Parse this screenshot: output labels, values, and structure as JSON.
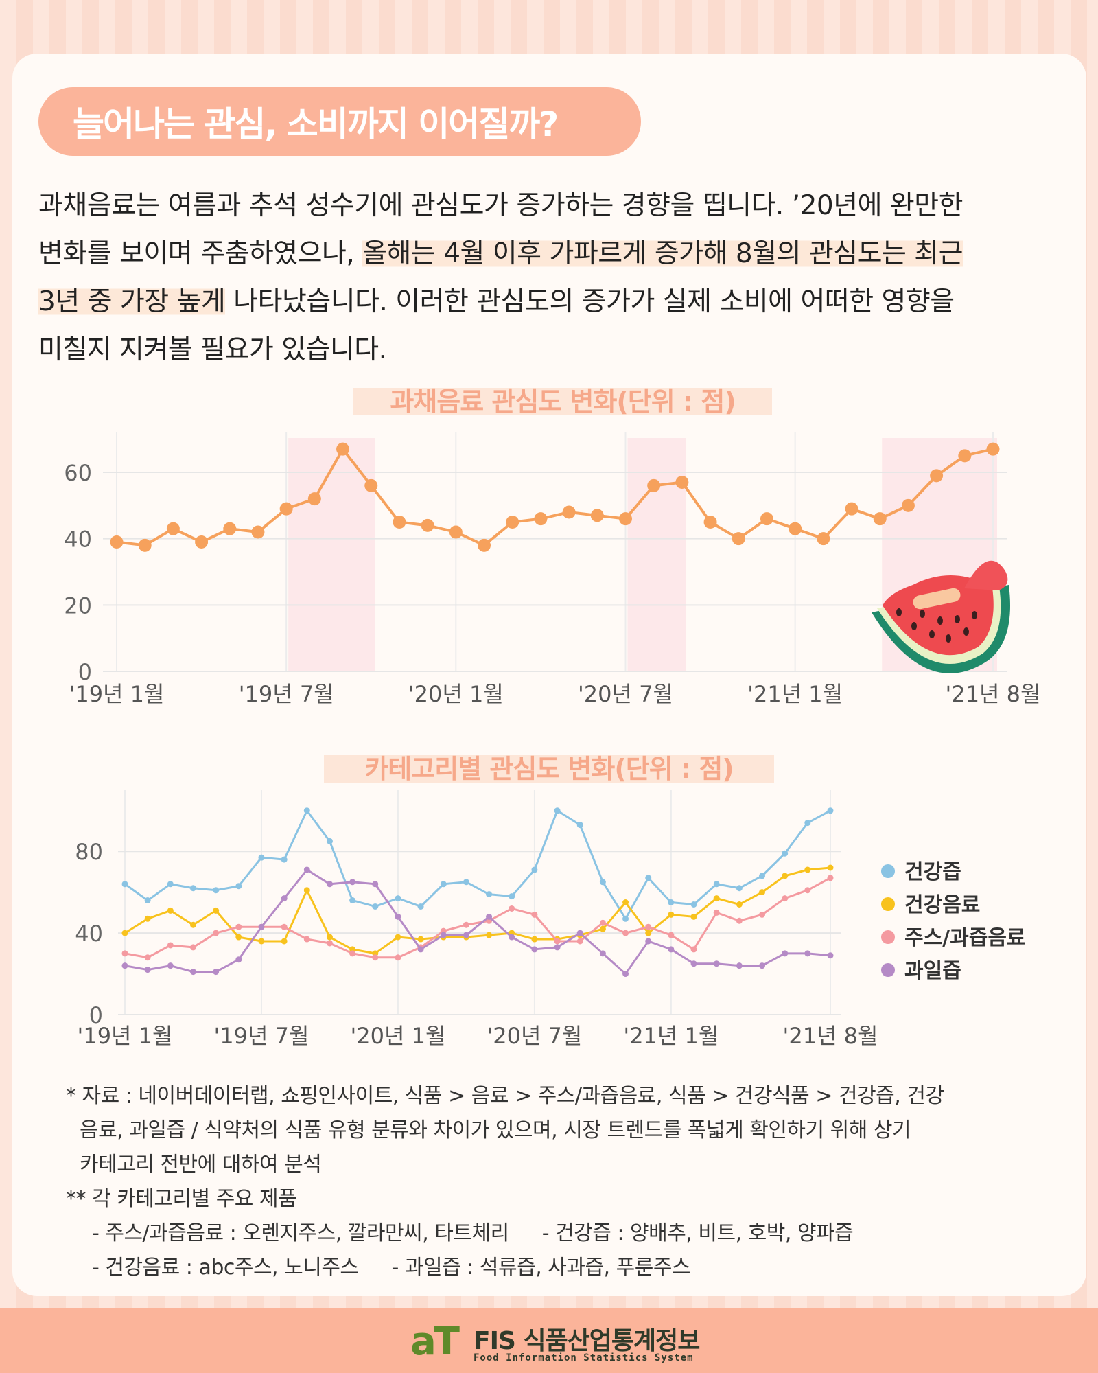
{
  "header": {
    "title": "늘어나는 관심, 소비까지 이어질까?"
  },
  "intro": {
    "line1": "과채음료는 여름과 추석 성수기에 관심도가 증가하는 경향을 띱니다. ’20년에 완만한",
    "line2a": "변화를 보이며 주춤하였으나, ",
    "line2b": "올해는 4월 이후 가파르게 증가해 8월의 관심도는 최근",
    "line3a": "3년 중 가장 높게",
    "line3b": " 나타났습니다. 이러한 관심도의 증가가 실제 소비에 어떠한 영향을",
    "line4": "미칠지 지켜볼 필요가 있습니다."
  },
  "colors": {
    "accent": "#fbb49a",
    "line_orange": "#f6a15c",
    "highlight_band": "#fde8ea",
    "health_juice": "#8ac3e3",
    "health_drink": "#f8c21d",
    "juice_drink": "#f49aa0",
    "fruit_juice": "#b58ac6"
  },
  "chart_data": [
    {
      "type": "line",
      "title": "과채음료 관심도 변화(단위 : 점)",
      "x": [
        "'19년 1월",
        "'19년 2월",
        "'19년 3월",
        "'19년 4월",
        "'19년 5월",
        "'19년 6월",
        "'19년 7월",
        "'19년 8월",
        "'19년 9월",
        "'19년 10월",
        "'19년 11월",
        "'19년 12월",
        "'20년 1월",
        "'20년 2월",
        "'20년 3월",
        "'20년 4월",
        "'20년 5월",
        "'20년 6월",
        "'20년 7월",
        "'20년 8월",
        "'20년 9월",
        "'20년 10월",
        "'20년 11월",
        "'20년 12월",
        "'21년 1월",
        "'21년 2월",
        "'21년 3월",
        "'21년 4월",
        "'21년 5월",
        "'21년 6월",
        "'21년 7월",
        "'21년 8월"
      ],
      "tick_labels": [
        "'19년 1월",
        "'19년 7월",
        "'20년 1월",
        "'20년 7월",
        "'21년 1월",
        "'21년 8월"
      ],
      "series": [
        {
          "values": [
            39,
            38,
            43,
            39,
            43,
            42,
            49,
            52,
            67,
            56,
            45,
            44,
            42,
            38,
            45,
            46,
            48,
            47,
            46,
            56,
            57,
            45,
            40,
            46,
            43,
            40,
            49,
            46,
            50,
            59,
            65,
            67
          ]
        }
      ],
      "highlight_ranges": [
        [
          "'19년 7월",
          "'19년 10월"
        ],
        [
          "'20년 7월",
          "'20년 9월"
        ],
        [
          "'21년 4월",
          "'21년 8월"
        ]
      ],
      "ylim": [
        0,
        72
      ],
      "yticks": [
        0,
        20,
        40,
        60
      ],
      "grid": true
    },
    {
      "type": "line",
      "title": "카테고리별 관심도 변화(단위 : 점)",
      "x": [
        "'19년 1월",
        "'19년 2월",
        "'19년 3월",
        "'19년 4월",
        "'19년 5월",
        "'19년 6월",
        "'19년 7월",
        "'19년 8월",
        "'19년 9월",
        "'19년 10월",
        "'19년 11월",
        "'19년 12월",
        "'20년 1월",
        "'20년 2월",
        "'20년 3월",
        "'20년 4월",
        "'20년 5월",
        "'20년 6월",
        "'20년 7월",
        "'20년 8월",
        "'20년 9월",
        "'20년 10월",
        "'20년 11월",
        "'20년 12월",
        "'21년 1월",
        "'21년 2월",
        "'21년 3월",
        "'21년 4월",
        "'21년 5월",
        "'21년 6월",
        "'21년 7월",
        "'21년 8월"
      ],
      "tick_labels": [
        "'19년 1월",
        "'19년 7월",
        "'20년 1월",
        "'20년 7월",
        "'21년 1월",
        "'21년 8월"
      ],
      "series": [
        {
          "name": "건강즙",
          "values": [
            64,
            56,
            64,
            62,
            61,
            63,
            77,
            76,
            100,
            85,
            56,
            53,
            57,
            53,
            64,
            65,
            59,
            58,
            71,
            100,
            93,
            65,
            47,
            67,
            55,
            54,
            64,
            62,
            68,
            79,
            94,
            100
          ]
        },
        {
          "name": "건강음료",
          "values": [
            40,
            47,
            51,
            44,
            51,
            38,
            36,
            36,
            61,
            38,
            32,
            30,
            38,
            37,
            38,
            38,
            39,
            40,
            37,
            37,
            39,
            42,
            55,
            40,
            49,
            48,
            57,
            54,
            60,
            68,
            71,
            72
          ]
        },
        {
          "name": "주스/과즙음료",
          "values": [
            30,
            28,
            34,
            33,
            40,
            43,
            43,
            43,
            37,
            35,
            30,
            28,
            28,
            33,
            41,
            44,
            46,
            52,
            49,
            36,
            36,
            45,
            40,
            43,
            39,
            32,
            50,
            46,
            49,
            57,
            61,
            67
          ]
        },
        {
          "name": "과일즙",
          "values": [
            24,
            22,
            24,
            21,
            21,
            27,
            43,
            57,
            71,
            64,
            65,
            64,
            48,
            32,
            39,
            39,
            48,
            38,
            32,
            33,
            40,
            30,
            20,
            36,
            32,
            25,
            25,
            24,
            24,
            30,
            30,
            29
          ]
        }
      ],
      "ylim": [
        0,
        108
      ],
      "yticks": [
        0,
        40,
        80
      ],
      "legend": "right",
      "grid": true
    }
  ],
  "notes": {
    "source_line1": "* 자료 : 네이버데이터랩, 쇼핑인사이트, 식품 > 음료 > 주스/과즙음료, 식품 > 건강식품 > 건강즙, 건강",
    "source_line2": "음료, 과일즙 / 식약처의 식품 유형 분류와 차이가 있으며, 시장 트렌드를 폭넓게 확인하기 위해 상기",
    "source_line3": "카테고리 전반에 대하여 분석",
    "products_heading": "** 각 카테고리별 주요 제품",
    "products_line1a": "- 주스/과즙음료 : 오렌지주스, 깔라만씨, 타트체리",
    "products_line1b": "- 건강즙 : 양배추, 비트, 호박, 양파즙",
    "products_line2a": "- 건강음료 : abc주스, 노니주스",
    "products_line2b": "- 과일즙 : 석류즙, 사과즙, 푸룬주스"
  },
  "footer": {
    "logo_mark": "aT",
    "brand": "FIS 식품산업통계정보",
    "tagline": "Food Information Statistics System"
  }
}
